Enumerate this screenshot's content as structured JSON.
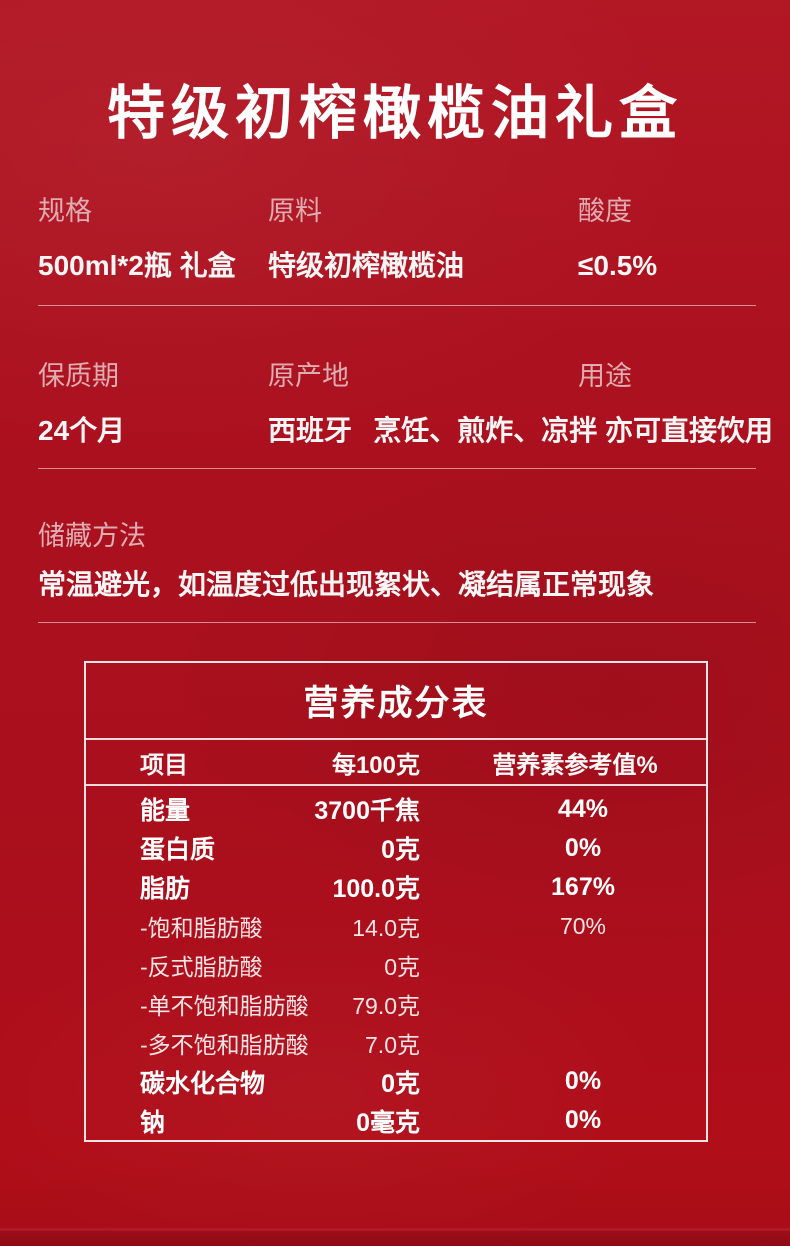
{
  "page": {
    "title": "特级初榨橄榄油礼盒"
  },
  "specs": {
    "row1": [
      {
        "label": "规格",
        "value": "500ml*2瓶 礼盒"
      },
      {
        "label": "原料",
        "value": "特级初榨橄榄油"
      },
      {
        "label": "酸度",
        "value": "≤0.5%"
      }
    ],
    "row2": [
      {
        "label": "保质期",
        "value": "24个月"
      },
      {
        "label": "原产地",
        "value": "西班牙"
      },
      {
        "label": "用途",
        "value": "烹饪、煎炸、凉拌 亦可直接饮用"
      }
    ],
    "storage": {
      "label": "储藏方法",
      "value": "常温避光，如温度过低出现絮状、凝结属正常现象"
    }
  },
  "nutrition": {
    "title": "营养成分表",
    "headers": [
      "项目",
      "每100克",
      "营养素参考值%"
    ],
    "rows": [
      {
        "name": "能量",
        "per100g": "3700千焦",
        "nrv": "44%"
      },
      {
        "name": "蛋白质",
        "per100g": "0克",
        "nrv": "0%"
      },
      {
        "name": "脂肪",
        "per100g": "100.0克",
        "nrv": "167%"
      },
      {
        "name": "-饱和脂肪酸",
        "per100g": "14.0克",
        "nrv": "70%"
      },
      {
        "name": "-反式脂肪酸",
        "per100g": "0克",
        "nrv": ""
      },
      {
        "name": "-单不饱和脂肪酸",
        "per100g": "79.0克",
        "nrv": ""
      },
      {
        "name": "-多不饱和脂肪酸",
        "per100g": "7.0克",
        "nrv": ""
      },
      {
        "name": "碳水化合物",
        "per100g": "0克",
        "nrv": "0%"
      },
      {
        "name": "钠",
        "per100g": "0毫克",
        "nrv": "0%"
      }
    ]
  },
  "colors": {
    "background": "#ab101e",
    "title_text": "#ffffff",
    "label_text": "#dfacb1",
    "value_text": "#f7f5f5",
    "table_border": "#f9f2f2"
  }
}
